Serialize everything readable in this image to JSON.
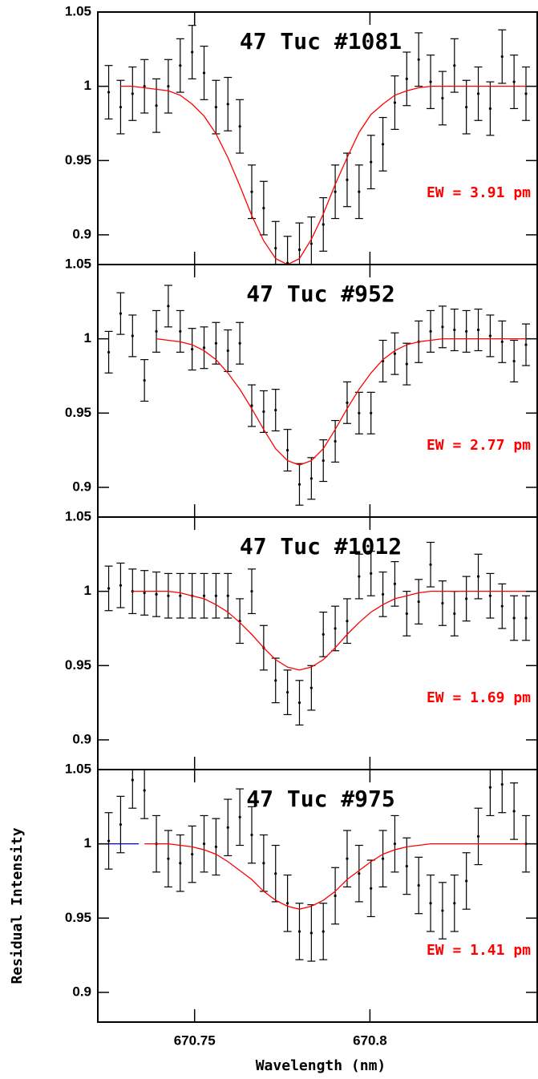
{
  "chart_data": [
    {
      "type": "scatter",
      "title": "47 Tuc #1081",
      "annotation": "EW = 3.91 pm",
      "xlim": [
        670.7224,
        670.8477
      ],
      "ylim": [
        0.88,
        1.05
      ],
      "yticks": [
        0.9,
        0.95,
        1,
        1.05
      ],
      "x": [
        670.7255,
        670.7289,
        670.7323,
        670.7357,
        670.7391,
        670.7425,
        670.7459,
        670.7493,
        670.7527,
        670.7561,
        670.7595,
        670.7629,
        670.7663,
        670.7697,
        670.7731,
        670.7765,
        670.7799,
        670.7833,
        670.7867,
        670.7901,
        670.7935,
        670.7969,
        670.8003,
        670.8037,
        670.8071,
        670.8105,
        670.8139,
        670.8173,
        670.8207,
        670.8241,
        670.8275,
        670.8309,
        670.8343,
        670.8377,
        670.8411,
        670.8445
      ],
      "values": [
        0.996,
        0.986,
        0.995,
        1.0,
        0.987,
        1.0,
        1.014,
        1.023,
        1.009,
        0.986,
        0.988,
        0.973,
        0.929,
        0.918,
        0.891,
        0.881,
        0.89,
        0.894,
        0.907,
        0.929,
        0.937,
        0.929,
        0.949,
        0.961,
        0.989,
        1.005,
        1.018,
        1.003,
        0.992,
        1.014,
        0.986,
        0.995,
        0.985,
        1.02,
        1.003,
        0.995
      ],
      "errors": 0.018,
      "color": "#000000",
      "fit": [
        null,
        1.0,
        1.0,
        0.999,
        0.998,
        0.997,
        0.994,
        0.988,
        0.98,
        0.968,
        0.952,
        0.933,
        0.913,
        0.896,
        0.884,
        0.88,
        0.884,
        0.897,
        0.914,
        0.934,
        0.952,
        0.969,
        0.981,
        0.988,
        0.994,
        0.997,
        0.999,
        1.0,
        1.0,
        1.0,
        1.0,
        1.0,
        1.0,
        1.0,
        1.0,
        1.0
      ],
      "fit_color": "#ff0000"
    },
    {
      "type": "scatter",
      "title": "47 Tuc #952",
      "annotation": "EW = 2.77 pm",
      "xlim": [
        670.7224,
        670.8477
      ],
      "ylim": [
        0.88,
        1.05
      ],
      "yticks": [
        0.9,
        0.95,
        1,
        1.05
      ],
      "x": [
        670.7255,
        670.7289,
        670.7323,
        670.7357,
        670.7391,
        670.7425,
        670.7459,
        670.7493,
        670.7527,
        670.7561,
        670.7595,
        670.7629,
        670.7663,
        670.7697,
        670.7731,
        670.7765,
        670.7799,
        670.7833,
        670.7867,
        670.7901,
        670.7935,
        670.7969,
        670.8003,
        670.8037,
        670.8071,
        670.8105,
        670.8139,
        670.8173,
        670.8207,
        670.8241,
        670.8275,
        670.8309,
        670.8343,
        670.8377,
        670.8411,
        670.8445
      ],
      "values": [
        0.991,
        1.017,
        1.002,
        0.972,
        1.005,
        1.022,
        1.005,
        0.993,
        0.994,
        0.997,
        0.992,
        0.997,
        0.955,
        0.951,
        0.952,
        0.925,
        0.902,
        0.906,
        0.918,
        0.931,
        0.957,
        0.95,
        0.95,
        0.985,
        0.99,
        0.983,
        0.998,
        1.005,
        1.008,
        1.006,
        1.005,
        1.006,
        1.002,
        0.998,
        0.985,
        0.996
      ],
      "errors": 0.014,
      "color": "#000000",
      "fit": [
        null,
        null,
        null,
        null,
        1.0,
        0.999,
        0.998,
        0.996,
        0.992,
        0.986,
        0.977,
        0.966,
        0.953,
        0.939,
        0.926,
        0.918,
        0.915,
        0.918,
        0.926,
        0.939,
        0.953,
        0.966,
        0.977,
        0.986,
        0.992,
        0.996,
        0.998,
        0.999,
        1.0,
        1.0,
        1.0,
        1.0,
        1.0,
        1.0,
        1.0,
        1.0
      ],
      "fit_color": "#ff0000"
    },
    {
      "type": "scatter",
      "title": "47 Tuc #1012",
      "annotation": "EW = 1.69 pm",
      "xlim": [
        670.7224,
        670.8477
      ],
      "ylim": [
        0.88,
        1.05
      ],
      "yticks": [
        0.9,
        0.95,
        1,
        1.05
      ],
      "x": [
        670.7255,
        670.7289,
        670.7323,
        670.7357,
        670.7391,
        670.7425,
        670.7459,
        670.7493,
        670.7527,
        670.7561,
        670.7595,
        670.7629,
        670.7663,
        670.7697,
        670.7731,
        670.7765,
        670.7799,
        670.7833,
        670.7867,
        670.7901,
        670.7935,
        670.7969,
        670.8003,
        670.8037,
        670.8071,
        670.8105,
        670.8139,
        670.8173,
        670.8207,
        670.8241,
        670.8275,
        670.8309,
        670.8343,
        670.8377,
        670.8411,
        670.8445
      ],
      "values": [
        1.002,
        1.004,
        1.0,
        0.999,
        0.998,
        0.997,
        0.997,
        0.997,
        0.997,
        0.997,
        0.997,
        0.98,
        1.0,
        0.962,
        0.94,
        0.932,
        0.925,
        0.935,
        0.971,
        0.975,
        0.98,
        1.01,
        1.012,
        0.998,
        1.005,
        0.985,
        0.993,
        1.018,
        0.992,
        0.985,
        0.995,
        1.01,
        0.997,
        0.99,
        0.982,
        0.982
      ],
      "errors": 0.015,
      "color": "#000000",
      "fit": [
        null,
        null,
        1.0,
        1.0,
        1.0,
        1.0,
        0.999,
        0.997,
        0.995,
        0.991,
        0.986,
        0.979,
        0.971,
        0.962,
        0.954,
        0.949,
        0.947,
        0.949,
        0.954,
        0.962,
        0.971,
        0.979,
        0.986,
        0.991,
        0.995,
        0.997,
        0.999,
        1.0,
        1.0,
        1.0,
        1.0,
        1.0,
        1.0,
        1.0,
        1.0,
        1.0
      ],
      "fit_color": "#ff0000"
    },
    {
      "type": "scatter",
      "title": "47 Tuc #975",
      "annotation": "EW = 1.41 pm",
      "xlabel": "Wavelength (nm)",
      "ylabel": "Residual Intensity",
      "xlim": [
        670.7224,
        670.8477
      ],
      "ylim": [
        0.88,
        1.05
      ],
      "yticks": [
        0.9,
        0.95,
        1,
        1.05
      ],
      "xticks": [
        670.75,
        670.8
      ],
      "x": [
        670.7255,
        670.7289,
        670.7323,
        670.7357,
        670.7391,
        670.7425,
        670.7459,
        670.7493,
        670.7527,
        670.7561,
        670.7595,
        670.7629,
        670.7663,
        670.7697,
        670.7731,
        670.7765,
        670.7799,
        670.7833,
        670.7867,
        670.7901,
        670.7935,
        670.7969,
        670.8003,
        670.8037,
        670.8071,
        670.8105,
        670.8139,
        670.8173,
        670.8207,
        670.8241,
        670.8275,
        670.8309,
        670.8343,
        670.8377,
        670.8411,
        670.8445
      ],
      "values": [
        1.002,
        1.013,
        1.043,
        1.036,
        1.0,
        0.99,
        0.987,
        0.993,
        1.0,
        0.998,
        1.011,
        1.018,
        1.006,
        0.987,
        0.98,
        0.96,
        0.941,
        0.94,
        0.941,
        0.965,
        0.99,
        0.98,
        0.97,
        0.99,
        1.0,
        0.985,
        0.972,
        0.96,
        0.955,
        0.96,
        0.975,
        1.005,
        1.038,
        1.04,
        1.022,
        1.0
      ],
      "errors": 0.019,
      "color": "#000000",
      "fit": [
        null,
        null,
        null,
        1.0,
        1.0,
        1.0,
        0.999,
        0.998,
        0.996,
        0.993,
        0.988,
        0.982,
        0.976,
        0.968,
        0.962,
        0.958,
        0.956,
        0.958,
        0.962,
        0.968,
        0.976,
        0.982,
        0.988,
        0.993,
        0.996,
        0.998,
        0.999,
        1.0,
        1.0,
        1.0,
        1.0,
        1.0,
        1.0,
        1.0,
        1.0,
        1.0
      ],
      "fit_color": "#ff0000",
      "baseline": {
        "x": [
          670.7224,
          670.7341
        ],
        "values": [
          1,
          1
        ],
        "color": "#0000cc"
      }
    }
  ]
}
